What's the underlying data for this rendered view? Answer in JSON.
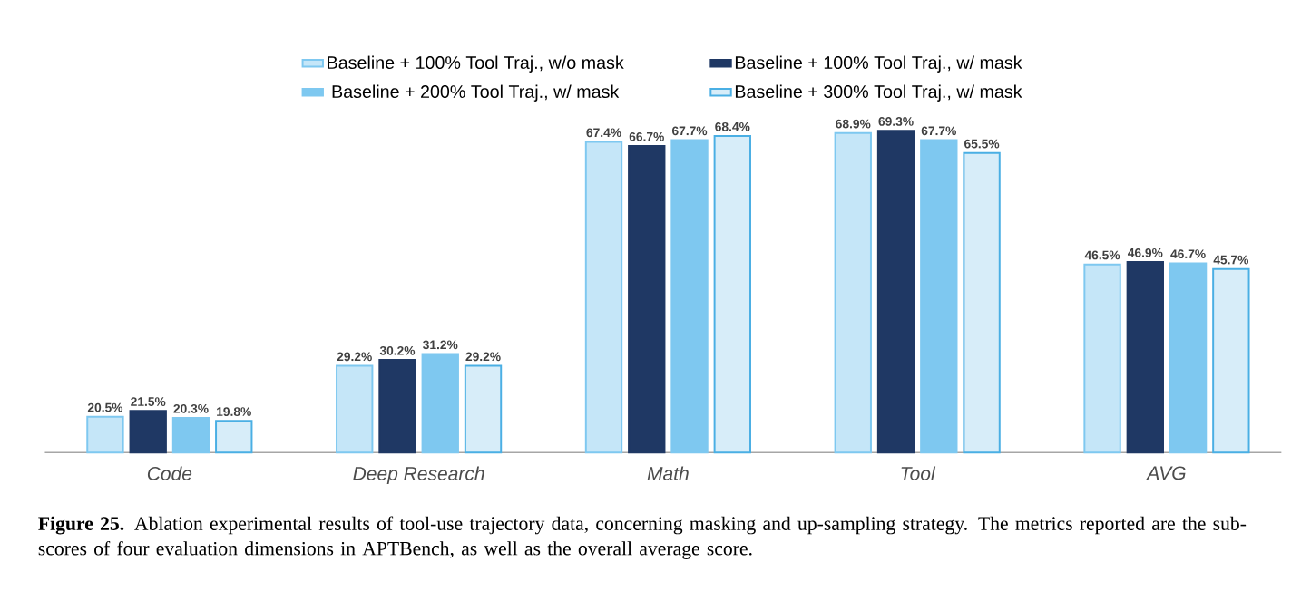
{
  "chart_data": {
    "type": "bar",
    "categories": [
      "Code",
      "Deep Research",
      "Math",
      "Tool",
      "AVG"
    ],
    "series": [
      {
        "name": "Baseline + 100% Tool Traj., w/o mask",
        "color": "#c5e6f8",
        "values": [
          20.5,
          29.2,
          67.4,
          68.9,
          46.5
        ],
        "value_labels": [
          "20.5%",
          "29.2%",
          "67.4%",
          "68.9%",
          "46.5%"
        ]
      },
      {
        "name": "Baseline + 100% Tool Traj., w/ mask",
        "color": "#1f3864",
        "values": [
          21.5,
          30.2,
          66.7,
          69.3,
          46.9
        ],
        "value_labels": [
          "21.5%",
          "30.2%",
          "66.7%",
          "69.3%",
          "46.9%"
        ]
      },
      {
        "name": "Baseline + 200% Tool Traj., w/ mask",
        "color": "#7ec8f0",
        "values": [
          20.3,
          31.2,
          67.7,
          67.7,
          46.7
        ],
        "value_labels": [
          "20.3%",
          "31.2%",
          "67.7%",
          "67.7%",
          "46.7%"
        ]
      },
      {
        "name": "Baseline + 300% Tool Traj., w/ mask",
        "color": "#d7edf9",
        "values": [
          19.8,
          29.2,
          68.4,
          65.5,
          45.7
        ],
        "value_labels": [
          "19.8%",
          "29.2%",
          "68.4%",
          "65.5%",
          "45.7%"
        ]
      }
    ],
    "ylim": [
      14.4,
      69.3
    ],
    "legend": "top",
    "annotations": [
      "**Figure 25.** Ablation experimental results of tool-use trajectory data, concerning masking and up-sampling strategy. The metrics reported are the sub-scores of four evaluation dimensions in APTBench, as well as the overall average score."
    ]
  }
}
